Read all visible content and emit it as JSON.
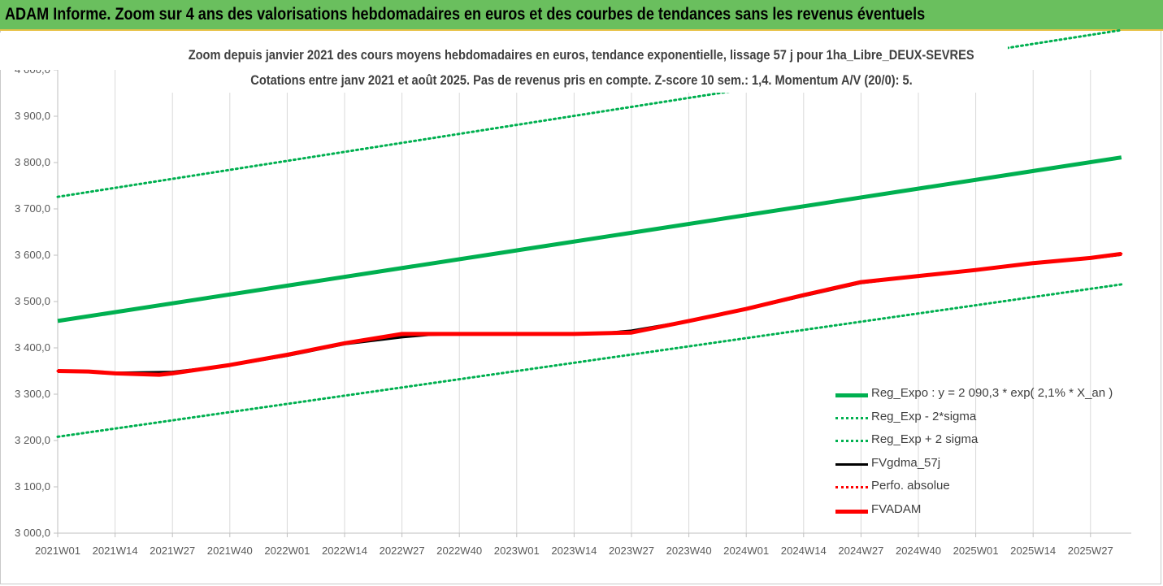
{
  "header": {
    "title": "ADAM Informe. Zoom sur 4 ans des valorisations hebdomadaires en euros et des courbes de tendances sans les revenus éventuels"
  },
  "chart_data": {
    "type": "line",
    "title_line1": "Zoom depuis janvier 2021 des cours moyens hebdomadaires en euros, tendance exponentielle, lissage 57 j pour 1ha_Libre_DEUX-SEVRES",
    "title_line2": "Cotations entre janv 2021 et août 2025.  Pas de revenus pris en compte. Z-score 10 sem.: 1,4. Momentum A/V (20/0): 5.",
    "x_tick_labels": [
      "2021W01",
      "2021W14",
      "2021W27",
      "2021W40",
      "2022W01",
      "2022W14",
      "2022W27",
      "2022W40",
      "2023W01",
      "2023W14",
      "2023W27",
      "2023W40",
      "2024W01",
      "2024W14",
      "2024W27",
      "2024W40",
      "2025W01",
      "2025W14",
      "2025W27"
    ],
    "y_tick_labels": [
      "3 000,0",
      "3 100,0",
      "3 200,0",
      "3 300,0",
      "3 400,0",
      "3 500,0",
      "3 600,0",
      "3 700,0",
      "3 800,0",
      "3 900,0",
      "4 000,0"
    ],
    "ylim": [
      3000,
      4000
    ],
    "grid": "vertical",
    "legend_position": "right",
    "series": [
      {
        "name": "Reg_Expo : y = 2 090,3 * exp( 2,1% *  X_an )",
        "color": "#00b050",
        "style": "solid-thick",
        "points": [
          [
            "2021W01",
            3458
          ],
          [
            "2025W34",
            3811
          ]
        ]
      },
      {
        "name": "Reg_Exp - 2*sigma",
        "color": "#00b050",
        "style": "dotted",
        "points": [
          [
            "2021W01",
            3208
          ],
          [
            "2025W34",
            3537
          ]
        ]
      },
      {
        "name": "Reg_Exp + 2 sigma",
        "color": "#00b050",
        "style": "dotted",
        "points": [
          [
            "2021W01",
            3726
          ],
          [
            "2025W34",
            4086
          ]
        ]
      },
      {
        "name": "FVgdma_57j",
        "color": "#000000",
        "style": "solid",
        "points": [
          [
            "2021W01",
            3350
          ],
          [
            "2021W08",
            3348
          ],
          [
            "2021W14",
            3346
          ],
          [
            "2021W27",
            3348
          ],
          [
            "2021W40",
            3362
          ],
          [
            "2022W01",
            3383
          ],
          [
            "2022W14",
            3408
          ],
          [
            "2022W27",
            3423
          ],
          [
            "2022W33",
            3428
          ],
          [
            "2022W40",
            3430
          ],
          [
            "2023W01",
            3430
          ],
          [
            "2023W14",
            3430
          ],
          [
            "2023W22",
            3433
          ],
          [
            "2023W27",
            3437
          ],
          [
            "2023W40",
            3458
          ],
          [
            "2024W01",
            3483
          ],
          [
            "2024W14",
            3512
          ],
          [
            "2024W27",
            3540
          ],
          [
            "2024W40",
            3555
          ],
          [
            "2025W01",
            3567
          ],
          [
            "2025W14",
            3582
          ],
          [
            "2025W27",
            3593
          ],
          [
            "2025W34",
            3601
          ]
        ]
      },
      {
        "name": "Perfo. absolue",
        "color": "#ff0000",
        "style": "dotted",
        "points": [
          [
            "2021W01",
            3350
          ],
          [
            "2021W08",
            3349
          ],
          [
            "2021W14",
            3345
          ],
          [
            "2021W24",
            3342
          ],
          [
            "2021W27",
            3345
          ],
          [
            "2021W40",
            3363
          ],
          [
            "2022W01",
            3385
          ],
          [
            "2022W14",
            3410
          ],
          [
            "2022W27",
            3430
          ],
          [
            "2022W40",
            3430
          ],
          [
            "2023W01",
            3430
          ],
          [
            "2023W14",
            3430
          ],
          [
            "2023W27",
            3433
          ],
          [
            "2023W40",
            3458
          ],
          [
            "2024W01",
            3484
          ],
          [
            "2024W14",
            3514
          ],
          [
            "2024W27",
            3542
          ],
          [
            "2024W40",
            3555
          ],
          [
            "2025W01",
            3568
          ],
          [
            "2025W14",
            3583
          ],
          [
            "2025W27",
            3594
          ],
          [
            "2025W34",
            3603
          ]
        ]
      },
      {
        "name": "FVADAM",
        "color": "#ff0000",
        "style": "solid-thick",
        "points": [
          [
            "2021W01",
            3350
          ],
          [
            "2021W08",
            3349
          ],
          [
            "2021W14",
            3345
          ],
          [
            "2021W24",
            3342
          ],
          [
            "2021W27",
            3345
          ],
          [
            "2021W40",
            3363
          ],
          [
            "2022W01",
            3385
          ],
          [
            "2022W14",
            3410
          ],
          [
            "2022W27",
            3430
          ],
          [
            "2022W40",
            3430
          ],
          [
            "2023W01",
            3430
          ],
          [
            "2023W14",
            3430
          ],
          [
            "2023W27",
            3433
          ],
          [
            "2023W40",
            3458
          ],
          [
            "2024W01",
            3484
          ],
          [
            "2024W14",
            3514
          ],
          [
            "2024W27",
            3542
          ],
          [
            "2024W40",
            3555
          ],
          [
            "2025W01",
            3568
          ],
          [
            "2025W14",
            3583
          ],
          [
            "2025W27",
            3594
          ],
          [
            "2025W34",
            3603
          ]
        ]
      }
    ]
  }
}
